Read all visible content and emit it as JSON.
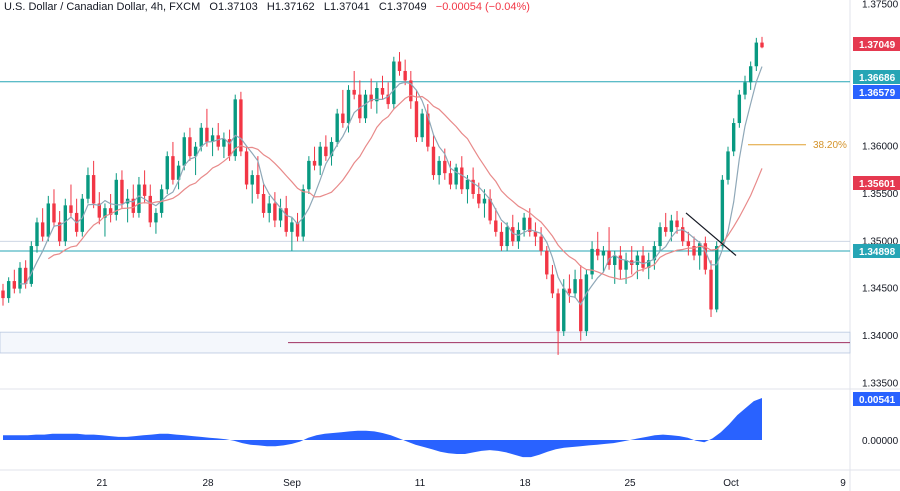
{
  "legend": {
    "symbol": "U.S. Dollar / Canadian Dollar, 4h, FXCM",
    "open_label": "O",
    "open": "1.37103",
    "high_label": "H",
    "high": "1.37162",
    "low_label": "L",
    "low": "1.37041",
    "close_label": "C",
    "close": "1.37049",
    "change": "−0.00054 (−0.04%)"
  },
  "colors": {
    "up": "#089981",
    "down": "#f23645",
    "ma_fast": "#8fa8b8",
    "ma_slow": "#e88a8a",
    "level": "#26a5b5",
    "fib": "#e0a030",
    "support_zone": "#b8c7e0",
    "support_line": "#a03060",
    "oscillator": "#2962ff",
    "price_tag_red": "#e53950",
    "price_tag_teal": "#26a5b5",
    "price_tag_blue": "#2962ff",
    "fib_text": "#d4932a"
  },
  "chart_data": [
    {
      "type": "candlestick",
      "title": "U.S. Dollar / Canadian Dollar, 4h, FXCM",
      "y_ticks": [
        "1.37500",
        "1.37049",
        "1.36686",
        "1.36579",
        "1.36000",
        "1.35601",
        "1.35500",
        "1.35000",
        "1.34898",
        "1.34500",
        "1.34000",
        "1.33500"
      ],
      "y_tick_values": [
        1.375,
        1.355,
        1.36,
        1.35,
        1.345,
        1.34,
        1.335
      ],
      "ylim": [
        1.3345,
        1.3755
      ],
      "x_ticks": [
        "21",
        "28",
        "Sep",
        "11",
        "18",
        "25",
        "Oct",
        "9"
      ],
      "grid": false,
      "price_tags": [
        {
          "label": "1.37049",
          "value": 1.37049,
          "color": "red"
        },
        {
          "label": "1.36686",
          "value": 1.36686,
          "color": "teal"
        },
        {
          "label": "1.36579",
          "value": 1.36579,
          "color": "blue"
        },
        {
          "label": "1.35601",
          "value": 1.35601,
          "color": "red"
        },
        {
          "label": "1.34898",
          "value": 1.34898,
          "color": "teal"
        }
      ],
      "horizontal_levels": [
        1.36686,
        1.34898,
        1.35
      ],
      "fib_level": {
        "label": "38.20%",
        "value": 1.3602
      },
      "support_zone": [
        1.3382,
        1.3404
      ],
      "support_line": 1.3393,
      "candles": [
        [
          1.3448,
          1.3455,
          1.3432,
          1.344
        ],
        [
          1.344,
          1.3462,
          1.3435,
          1.3458
        ],
        [
          1.3458,
          1.347,
          1.3445,
          1.345
        ],
        [
          1.345,
          1.3478,
          1.3445,
          1.3472
        ],
        [
          1.3472,
          1.348,
          1.345,
          1.3455
        ],
        [
          1.3455,
          1.35,
          1.3452,
          1.3495
        ],
        [
          1.3495,
          1.3525,
          1.3488,
          1.352
        ],
        [
          1.352,
          1.3535,
          1.35,
          1.3505
        ],
        [
          1.3505,
          1.3548,
          1.35,
          1.354
        ],
        [
          1.354,
          1.3555,
          1.3515,
          1.352
        ],
        [
          1.352,
          1.3532,
          1.3495,
          1.35
        ],
        [
          1.35,
          1.3545,
          1.3495,
          1.3538
        ],
        [
          1.3538,
          1.356,
          1.3525,
          1.353
        ],
        [
          1.353,
          1.3545,
          1.3505,
          1.351
        ],
        [
          1.351,
          1.355,
          1.3505,
          1.3545
        ],
        [
          1.3545,
          1.3578,
          1.354,
          1.357
        ],
        [
          1.357,
          1.3585,
          1.3535,
          1.354
        ],
        [
          1.354,
          1.3552,
          1.3518,
          1.3525
        ],
        [
          1.3525,
          1.354,
          1.3505,
          1.3535
        ],
        [
          1.3535,
          1.355,
          1.352,
          1.3528
        ],
        [
          1.3528,
          1.3572,
          1.3522,
          1.3565
        ],
        [
          1.3565,
          1.3575,
          1.3535,
          1.354
        ],
        [
          1.354,
          1.3555,
          1.352,
          1.3545
        ],
        [
          1.3545,
          1.356,
          1.3525,
          1.353
        ],
        [
          1.353,
          1.3568,
          1.3525,
          1.356
        ],
        [
          1.356,
          1.3575,
          1.354,
          1.3548
        ],
        [
          1.3548,
          1.356,
          1.3515,
          1.352
        ],
        [
          1.352,
          1.3535,
          1.3508,
          1.353
        ],
        [
          1.353,
          1.356,
          1.3525,
          1.3555
        ],
        [
          1.3555,
          1.3595,
          1.355,
          1.359
        ],
        [
          1.359,
          1.3605,
          1.356,
          1.3565
        ],
        [
          1.3565,
          1.3585,
          1.3555,
          1.358
        ],
        [
          1.358,
          1.3615,
          1.3575,
          1.361
        ],
        [
          1.361,
          1.362,
          1.3585,
          1.359
        ],
        [
          1.359,
          1.3605,
          1.357,
          1.36
        ],
        [
          1.36,
          1.3625,
          1.3595,
          1.362
        ],
        [
          1.362,
          1.364,
          1.36,
          1.3605
        ],
        [
          1.3605,
          1.362,
          1.359,
          1.3612
        ],
        [
          1.3612,
          1.3625,
          1.3596,
          1.36
        ],
        [
          1.36,
          1.3615,
          1.3588,
          1.3608
        ],
        [
          1.3608,
          1.3618,
          1.3585,
          1.359
        ],
        [
          1.359,
          1.3655,
          1.3585,
          1.365
        ],
        [
          1.365,
          1.3658,
          1.359,
          1.3595
        ],
        [
          1.3595,
          1.36,
          1.3555,
          1.356
        ],
        [
          1.356,
          1.3575,
          1.354,
          1.357
        ],
        [
          1.357,
          1.359,
          1.3545,
          1.355
        ],
        [
          1.355,
          1.356,
          1.3525,
          1.353
        ],
        [
          1.353,
          1.3548,
          1.352,
          1.354
        ],
        [
          1.354,
          1.3552,
          1.3515,
          1.3522
        ],
        [
          1.3522,
          1.3545,
          1.3515,
          1.3535
        ],
        [
          1.3535,
          1.3548,
          1.3505,
          1.351
        ],
        [
          1.351,
          1.3525,
          1.349,
          1.352
        ],
        [
          1.352,
          1.353,
          1.35,
          1.3505
        ],
        [
          1.3505,
          1.356,
          1.35,
          1.3555
        ],
        [
          1.3555,
          1.359,
          1.355,
          1.3585
        ],
        [
          1.3585,
          1.36,
          1.3575,
          1.358
        ],
        [
          1.358,
          1.3605,
          1.357,
          1.36
        ],
        [
          1.36,
          1.3612,
          1.3585,
          1.359
        ],
        [
          1.359,
          1.361,
          1.358,
          1.3605
        ],
        [
          1.3605,
          1.364,
          1.36,
          1.3635
        ],
        [
          1.3635,
          1.366,
          1.362,
          1.3625
        ],
        [
          1.3625,
          1.3665,
          1.3615,
          1.366
        ],
        [
          1.366,
          1.368,
          1.365,
          1.3655
        ],
        [
          1.3655,
          1.367,
          1.3625,
          1.363
        ],
        [
          1.363,
          1.366,
          1.3625,
          1.3655
        ],
        [
          1.3655,
          1.3672,
          1.364,
          1.3648
        ],
        [
          1.3648,
          1.3668,
          1.3635,
          1.3662
        ],
        [
          1.3662,
          1.3675,
          1.365,
          1.3655
        ],
        [
          1.3655,
          1.3668,
          1.364,
          1.3645
        ],
        [
          1.3645,
          1.3695,
          1.364,
          1.369
        ],
        [
          1.369,
          1.37,
          1.3675,
          1.368
        ],
        [
          1.368,
          1.3692,
          1.3665,
          1.367
        ],
        [
          1.367,
          1.368,
          1.364,
          1.3648
        ],
        [
          1.3648,
          1.366,
          1.3605,
          1.361
        ],
        [
          1.361,
          1.364,
          1.3605,
          1.3635
        ],
        [
          1.3635,
          1.3645,
          1.3595,
          1.36
        ],
        [
          1.36,
          1.3612,
          1.3565,
          1.357
        ],
        [
          1.357,
          1.359,
          1.356,
          1.3585
        ],
        [
          1.3585,
          1.3598,
          1.3565,
          1.3572
        ],
        [
          1.3572,
          1.3585,
          1.3555,
          1.356
        ],
        [
          1.356,
          1.3582,
          1.3555,
          1.3578
        ],
        [
          1.3578,
          1.359,
          1.355,
          1.3555
        ],
        [
          1.3555,
          1.357,
          1.354,
          1.3565
        ],
        [
          1.3565,
          1.3578,
          1.3545,
          1.355
        ],
        [
          1.355,
          1.3562,
          1.3535,
          1.354
        ],
        [
          1.354,
          1.3555,
          1.3525,
          1.3545
        ],
        [
          1.3545,
          1.3555,
          1.3518,
          1.3522
        ],
        [
          1.3522,
          1.3535,
          1.3505,
          1.351
        ],
        [
          1.351,
          1.352,
          1.349,
          1.3495
        ],
        [
          1.3495,
          1.352,
          1.349,
          1.3515
        ],
        [
          1.3515,
          1.3528,
          1.3495,
          1.35
        ],
        [
          1.35,
          1.352,
          1.3492,
          1.3512
        ],
        [
          1.3512,
          1.353,
          1.3505,
          1.3525
        ],
        [
          1.3525,
          1.3535,
          1.3505,
          1.351
        ],
        [
          1.351,
          1.352,
          1.3495,
          1.3505
        ],
        [
          1.3505,
          1.3515,
          1.3485,
          1.349
        ],
        [
          1.349,
          1.3495,
          1.346,
          1.3465
        ],
        [
          1.3465,
          1.3475,
          1.344,
          1.3445
        ],
        [
          1.3445,
          1.345,
          1.338,
          1.3405
        ],
        [
          1.3405,
          1.346,
          1.34,
          1.345
        ],
        [
          1.345,
          1.3465,
          1.3435,
          1.3445
        ],
        [
          1.3445,
          1.347,
          1.344,
          1.346
        ],
        [
          1.346,
          1.3475,
          1.3395,
          1.3405
        ],
        [
          1.3405,
          1.347,
          1.34,
          1.3465
        ],
        [
          1.3465,
          1.35,
          1.346,
          1.3492
        ],
        [
          1.3492,
          1.351,
          1.348,
          1.3485
        ],
        [
          1.3485,
          1.3495,
          1.3468,
          1.349
        ],
        [
          1.349,
          1.3515,
          1.347,
          1.3475
        ],
        [
          1.3475,
          1.349,
          1.3455,
          1.3485
        ],
        [
          1.3485,
          1.3495,
          1.346,
          1.347
        ],
        [
          1.347,
          1.3488,
          1.3455,
          1.348
        ],
        [
          1.348,
          1.3495,
          1.3465,
          1.3475
        ],
        [
          1.3475,
          1.349,
          1.346,
          1.3485
        ],
        [
          1.3485,
          1.3495,
          1.3468,
          1.3472
        ],
        [
          1.3472,
          1.3488,
          1.346,
          1.348
        ],
        [
          1.348,
          1.35,
          1.347,
          1.3495
        ],
        [
          1.3495,
          1.352,
          1.349,
          1.3515
        ],
        [
          1.3515,
          1.353,
          1.3505,
          1.351
        ],
        [
          1.351,
          1.3528,
          1.35,
          1.3522
        ],
        [
          1.3522,
          1.3532,
          1.3508,
          1.3515
        ],
        [
          1.3515,
          1.3525,
          1.3495,
          1.35
        ],
        [
          1.35,
          1.351,
          1.3485,
          1.3495
        ],
        [
          1.3495,
          1.3505,
          1.348,
          1.3485
        ],
        [
          1.3485,
          1.35,
          1.347,
          1.3498
        ],
        [
          1.3498,
          1.3505,
          1.3465,
          1.347
        ],
        [
          1.347,
          1.348,
          1.342,
          1.3428
        ],
        [
          1.3428,
          1.35,
          1.3425,
          1.3495
        ],
        [
          1.3495,
          1.357,
          1.3492,
          1.3565
        ],
        [
          1.3565,
          1.36,
          1.356,
          1.3595
        ],
        [
          1.3595,
          1.363,
          1.359,
          1.3625
        ],
        [
          1.3625,
          1.366,
          1.362,
          1.3655
        ],
        [
          1.3655,
          1.3675,
          1.365,
          1.3668
        ],
        [
          1.3668,
          1.369,
          1.366,
          1.3685
        ],
        [
          1.3685,
          1.3715,
          1.368,
          1.371
        ],
        [
          1.371,
          1.3716,
          1.3704,
          1.3705
        ]
      ]
    },
    {
      "type": "area",
      "zero_label": "0.00000",
      "last_label": "0.00541",
      "values": [
        0.0006,
        0.0006,
        0.0006,
        0.0006,
        0.0007,
        0.0007,
        0.0008,
        0.0008,
        0.0008,
        0.0008,
        0.0007,
        0.0007,
        0.0006,
        0.0005,
        0.0004,
        0.0004,
        0.0005,
        0.0006,
        0.0007,
        0.0008,
        0.0008,
        0.0007,
        0.0006,
        0.0005,
        0.0004,
        0.0003,
        0.0002,
        0.0001,
        -0.0001,
        -0.0004,
        -0.0006,
        -0.0007,
        -0.0008,
        -0.0008,
        -0.0007,
        -0.0005,
        -0.0002,
        0.0003,
        0.0006,
        0.0008,
        0.0009,
        0.001,
        0.0011,
        0.0012,
        0.0012,
        0.0011,
        0.0009,
        0.0006,
        0.0002,
        -0.0002,
        -0.0006,
        -0.0009,
        -0.0012,
        -0.0015,
        -0.0017,
        -0.0018,
        -0.0018,
        -0.0016,
        -0.0014,
        -0.0013,
        -0.0014,
        -0.0016,
        -0.0019,
        -0.0022,
        -0.0022,
        -0.0019,
        -0.0015,
        -0.0012,
        -0.001,
        -0.0009,
        -0.0008,
        -0.0007,
        -0.0006,
        -0.0005,
        -0.0004,
        -0.0002,
        0.0,
        0.0002,
        0.0004,
        0.0006,
        0.0007,
        0.0006,
        0.0005,
        0.0003,
        -0.0001,
        -0.0003,
        0.0002,
        0.001,
        0.002,
        0.0032,
        0.0041,
        0.005,
        0.0054
      ]
    }
  ]
}
